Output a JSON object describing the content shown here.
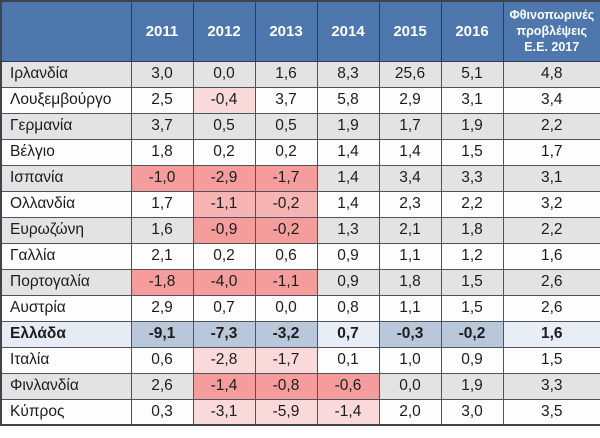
{
  "colors": {
    "header_bg": "#4d77ad",
    "header_text": "#ffffff",
    "row_gray": "#e3e3e3",
    "row_white": "#fdfdfd",
    "greece_row_bg": "#e6ebf4",
    "negative_on_gray_row": "#f59d9d",
    "negative_on_white_row_light": "#f9d9d9",
    "negative_on_white_row_medium": "#f7b4b4",
    "greece_negative_cell": "#b9c7db",
    "greece_positive_cell": "#e9eef6",
    "border": "#4e535c"
  },
  "table": {
    "columns": [
      "",
      "2011",
      "2012",
      "2013",
      "2014",
      "2015",
      "2016",
      "Φθινοπωρινές προβλέψεις Ε.Ε. 2017"
    ],
    "rows": [
      {
        "name": "Ιρλανδία",
        "zebra": "gray",
        "bold": false,
        "cells": [
          {
            "v": "3,0"
          },
          {
            "v": "0,0"
          },
          {
            "v": "1,6"
          },
          {
            "v": "8,3"
          },
          {
            "v": "25,6"
          },
          {
            "v": "5,1"
          },
          {
            "v": "4,8"
          }
        ]
      },
      {
        "name": "Λουξεμβούργο",
        "zebra": "white",
        "bold": false,
        "cells": [
          {
            "v": "2,5"
          },
          {
            "v": "-0,4",
            "bg": "pink"
          },
          {
            "v": "3,7"
          },
          {
            "v": "5,8"
          },
          {
            "v": "2,9"
          },
          {
            "v": "3,1"
          },
          {
            "v": "3,4"
          }
        ]
      },
      {
        "name": "Γερμανία",
        "zebra": "gray",
        "bold": false,
        "cells": [
          {
            "v": "3,7"
          },
          {
            "v": "0,5"
          },
          {
            "v": "0,5"
          },
          {
            "v": "1,9"
          },
          {
            "v": "1,7"
          },
          {
            "v": "1,9"
          },
          {
            "v": "2,2"
          }
        ]
      },
      {
        "name": "Βέλγιο",
        "zebra": "white",
        "bold": false,
        "cells": [
          {
            "v": "1,8"
          },
          {
            "v": "0,2"
          },
          {
            "v": "0,2"
          },
          {
            "v": "1,4"
          },
          {
            "v": "1,4"
          },
          {
            "v": "1,5"
          },
          {
            "v": "1,7"
          }
        ]
      },
      {
        "name": "Ισπανία",
        "zebra": "gray",
        "bold": false,
        "cells": [
          {
            "v": "-1,0",
            "bg": "salmon"
          },
          {
            "v": "-2,9",
            "bg": "salmon"
          },
          {
            "v": "-1,7",
            "bg": "salmon"
          },
          {
            "v": "1,4"
          },
          {
            "v": "3,4"
          },
          {
            "v": "3,3"
          },
          {
            "v": "3,1"
          }
        ]
      },
      {
        "name": "Ολλανδία",
        "zebra": "white",
        "bold": false,
        "cells": [
          {
            "v": "1,7"
          },
          {
            "v": "-1,1",
            "bg": "pinkMed"
          },
          {
            "v": "-0,2",
            "bg": "pinkMed"
          },
          {
            "v": "1,4"
          },
          {
            "v": "2,3"
          },
          {
            "v": "2,2"
          },
          {
            "v": "3,2"
          }
        ]
      },
      {
        "name": "Ευρωζώνη",
        "zebra": "gray",
        "bold": false,
        "cells": [
          {
            "v": "1,6"
          },
          {
            "v": "-0,9",
            "bg": "salmon"
          },
          {
            "v": "-0,2",
            "bg": "salmon"
          },
          {
            "v": "1,3"
          },
          {
            "v": "2,1"
          },
          {
            "v": "1,8"
          },
          {
            "v": "2,2"
          }
        ]
      },
      {
        "name": "Γαλλία",
        "zebra": "white",
        "bold": false,
        "cells": [
          {
            "v": "2,1"
          },
          {
            "v": "0,2"
          },
          {
            "v": "0,6"
          },
          {
            "v": "0,9"
          },
          {
            "v": "1,1"
          },
          {
            "v": "1,2"
          },
          {
            "v": "1,6"
          }
        ]
      },
      {
        "name": "Πορτογαλία",
        "zebra": "gray",
        "bold": false,
        "cells": [
          {
            "v": "-1,8",
            "bg": "salmon"
          },
          {
            "v": "-4,0",
            "bg": "salmon"
          },
          {
            "v": "-1,1",
            "bg": "salmon"
          },
          {
            "v": "0,9"
          },
          {
            "v": "1,8"
          },
          {
            "v": "1,5"
          },
          {
            "v": "2,6"
          }
        ]
      },
      {
        "name": "Αυστρία",
        "zebra": "white",
        "bold": false,
        "cells": [
          {
            "v": "2,9"
          },
          {
            "v": "0,7"
          },
          {
            "v": "0,0"
          },
          {
            "v": "0,8"
          },
          {
            "v": "1,1"
          },
          {
            "v": "1,5"
          },
          {
            "v": "2,6"
          }
        ]
      },
      {
        "name": "Ελλάδα",
        "zebra": "highlight",
        "bold": true,
        "cells": [
          {
            "v": "-9,1",
            "bg": "blueNeg"
          },
          {
            "v": "-7,3",
            "bg": "blueNeg"
          },
          {
            "v": "-3,2",
            "bg": "blueNeg"
          },
          {
            "v": "0,7",
            "bg": "blueLight"
          },
          {
            "v": "-0,3",
            "bg": "blueNeg"
          },
          {
            "v": "-0,2",
            "bg": "blueNeg"
          },
          {
            "v": "1,6",
            "bg": "blueLight"
          }
        ]
      },
      {
        "name": "Ιταλία",
        "zebra": "white",
        "bold": false,
        "cells": [
          {
            "v": "0,6"
          },
          {
            "v": "-2,8",
            "bg": "pink"
          },
          {
            "v": "-1,7",
            "bg": "pink"
          },
          {
            "v": "0,1"
          },
          {
            "v": "1,0"
          },
          {
            "v": "0,9"
          },
          {
            "v": "1,5"
          }
        ]
      },
      {
        "name": "Φινλανδία",
        "zebra": "gray",
        "bold": false,
        "cells": [
          {
            "v": "2,6"
          },
          {
            "v": "-1,4",
            "bg": "salmon"
          },
          {
            "v": "-0,8",
            "bg": "salmon"
          },
          {
            "v": "-0,6",
            "bg": "salmon"
          },
          {
            "v": "0,0"
          },
          {
            "v": "1,9"
          },
          {
            "v": "3,3"
          }
        ]
      },
      {
        "name": "Κύπρος",
        "zebra": "white",
        "bold": false,
        "cells": [
          {
            "v": "0,3"
          },
          {
            "v": "-3,1",
            "bg": "pink"
          },
          {
            "v": "-5,9",
            "bg": "pink"
          },
          {
            "v": "-1,4",
            "bg": "pink"
          },
          {
            "v": "2,0"
          },
          {
            "v": "3,0"
          },
          {
            "v": "3,5"
          }
        ]
      }
    ]
  },
  "chart_data": {
    "type": "table",
    "title": "",
    "categories": [
      "2011",
      "2012",
      "2013",
      "2014",
      "2015",
      "2016",
      "Φθινοπωρινές προβλέψεις Ε.Ε. 2017"
    ],
    "series": [
      {
        "name": "Ιρλανδία",
        "values": [
          3.0,
          0.0,
          1.6,
          8.3,
          25.6,
          5.1,
          4.8
        ]
      },
      {
        "name": "Λουξεμβούργο",
        "values": [
          2.5,
          -0.4,
          3.7,
          5.8,
          2.9,
          3.1,
          3.4
        ]
      },
      {
        "name": "Γερμανία",
        "values": [
          3.7,
          0.5,
          0.5,
          1.9,
          1.7,
          1.9,
          2.2
        ]
      },
      {
        "name": "Βέλγιο",
        "values": [
          1.8,
          0.2,
          0.2,
          1.4,
          1.4,
          1.5,
          1.7
        ]
      },
      {
        "name": "Ισπανία",
        "values": [
          -1.0,
          -2.9,
          -1.7,
          1.4,
          3.4,
          3.3,
          3.1
        ]
      },
      {
        "name": "Ολλανδία",
        "values": [
          1.7,
          -1.1,
          -0.2,
          1.4,
          2.3,
          2.2,
          3.2
        ]
      },
      {
        "name": "Ευρωζώνη",
        "values": [
          1.6,
          -0.9,
          -0.2,
          1.3,
          2.1,
          1.8,
          2.2
        ]
      },
      {
        "name": "Γαλλία",
        "values": [
          2.1,
          0.2,
          0.6,
          0.9,
          1.1,
          1.2,
          1.6
        ]
      },
      {
        "name": "Πορτογαλία",
        "values": [
          -1.8,
          -4.0,
          -1.1,
          0.9,
          1.8,
          1.5,
          2.6
        ]
      },
      {
        "name": "Αυστρία",
        "values": [
          2.9,
          0.7,
          0.0,
          0.8,
          1.1,
          1.5,
          2.6
        ]
      },
      {
        "name": "Ελλάδα",
        "values": [
          -9.1,
          -7.3,
          -3.2,
          0.7,
          -0.3,
          -0.2,
          1.6
        ]
      },
      {
        "name": "Ιταλία",
        "values": [
          0.6,
          -2.8,
          -1.7,
          0.1,
          1.0,
          0.9,
          1.5
        ]
      },
      {
        "name": "Φινλανδία",
        "values": [
          2.6,
          -1.4,
          -0.8,
          -0.6,
          0.0,
          1.9,
          3.3
        ]
      },
      {
        "name": "Κύπρος",
        "values": [
          0.3,
          -3.1,
          -5.9,
          -1.4,
          2.0,
          3.0,
          3.5
        ]
      }
    ],
    "highlighted_series": "Ελλάδα",
    "notes": "Negative values shaded red/pink; Greece row shaded blue with bold text; decimal comma formatting"
  }
}
